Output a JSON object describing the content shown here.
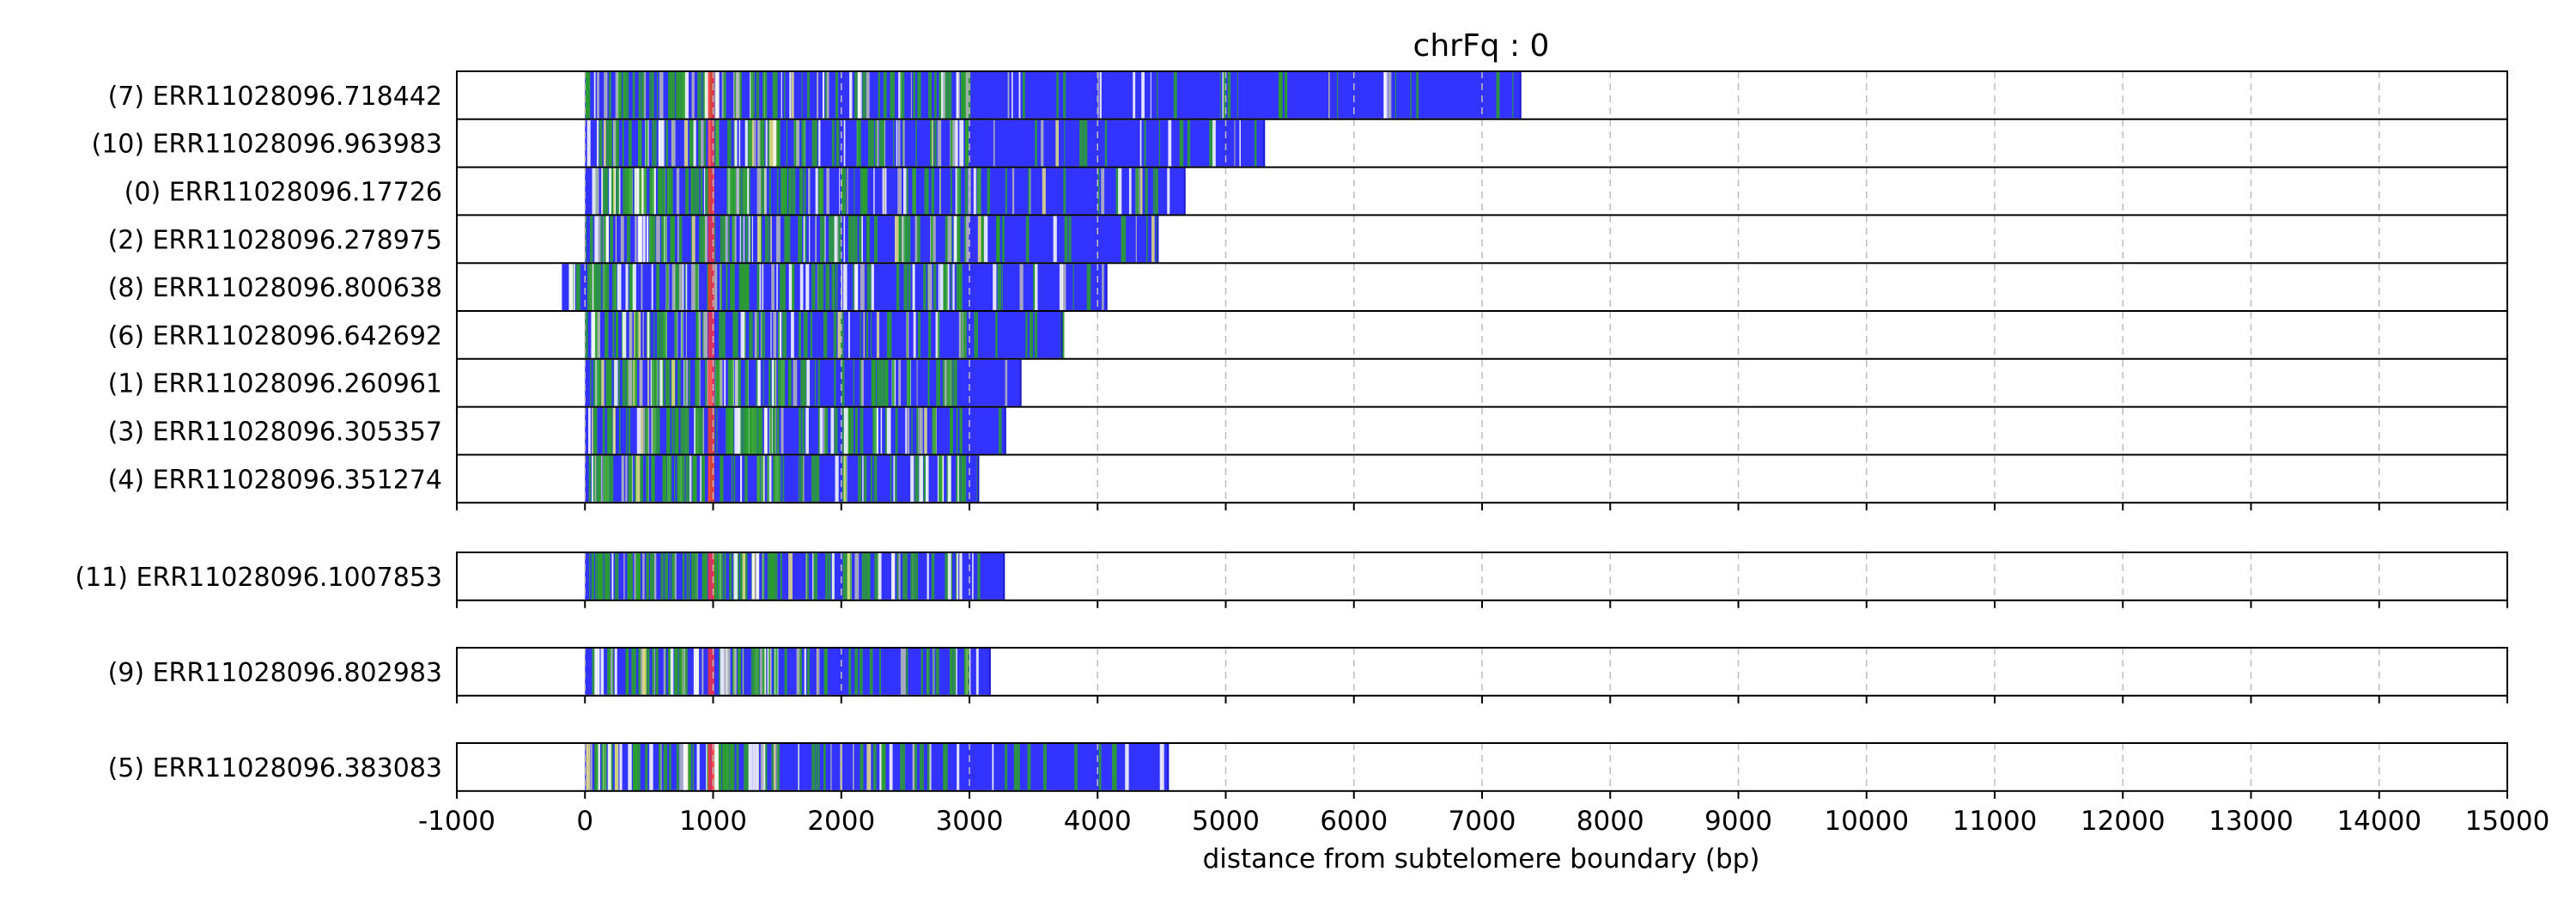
{
  "chart_data": {
    "type": "bar",
    "title": "chrFq : 0",
    "xlabel": "distance from subtelomere boundary (bp)",
    "ylabel": "",
    "xlim": [
      -1000,
      15000
    ],
    "x_ticks": [
      -1000,
      0,
      1000,
      2000,
      3000,
      4000,
      5000,
      6000,
      7000,
      8000,
      9000,
      10000,
      11000,
      12000,
      13000,
      14000,
      15000
    ],
    "grid": "vertical dashed",
    "colors": {
      "repeat": "#3333ff",
      "variant": "#2ca02c",
      "boundary": "#ff3333",
      "other": "#b8b8b8",
      "minor": "#e8e080"
    },
    "panels": [
      {
        "reads": [
          {
            "label": "(7) ERR11028096.718442",
            "start": 0,
            "end": 7300
          },
          {
            "label": "(10) ERR11028096.963983",
            "start": 0,
            "end": 5300
          },
          {
            "label": "(0) ERR11028096.17726",
            "start": 0,
            "end": 4680
          },
          {
            "label": "(2) ERR11028096.278975",
            "start": 0,
            "end": 4470
          },
          {
            "label": "(8) ERR11028096.800638",
            "start": -180,
            "end": 4070
          },
          {
            "label": "(6) ERR11028096.642692",
            "start": 0,
            "end": 3720
          },
          {
            "label": "(1) ERR11028096.260961",
            "start": 0,
            "end": 3400
          },
          {
            "label": "(3) ERR11028096.305357",
            "start": 0,
            "end": 3280
          },
          {
            "label": "(4) ERR11028096.351274",
            "start": 0,
            "end": 3070
          }
        ]
      },
      {
        "reads": [
          {
            "label": "(11) ERR11028096.1007853",
            "start": 0,
            "end": 3270
          }
        ]
      },
      {
        "reads": [
          {
            "label": "(9) ERR11028096.802983",
            "start": 0,
            "end": 3160
          }
        ]
      },
      {
        "reads": [
          {
            "label": "(5) ERR11028096.383083",
            "start": 0,
            "end": 4550
          }
        ]
      }
    ]
  }
}
